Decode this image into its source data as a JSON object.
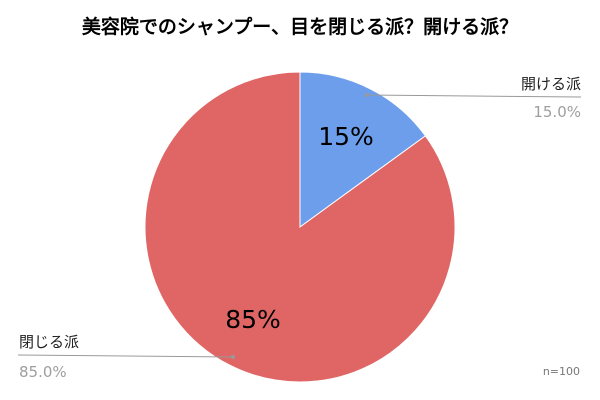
{
  "chart_data": {
    "type": "pie",
    "title": "美容院でのシャンプー、目を閉じる派？開ける派？",
    "slices": [
      {
        "label": "開ける派",
        "value": 15.0,
        "inner_label": "15%",
        "outer_pct": "15.0%",
        "color": "#6d9eeb"
      },
      {
        "label": "閉じる派",
        "value": 85.0,
        "inner_label": "85%",
        "outer_pct": "85.0%",
        "color": "#e06666"
      }
    ],
    "start_angle": "12 o'clock, clockwise",
    "legend": "none (callout labels)",
    "note": "n=100"
  }
}
